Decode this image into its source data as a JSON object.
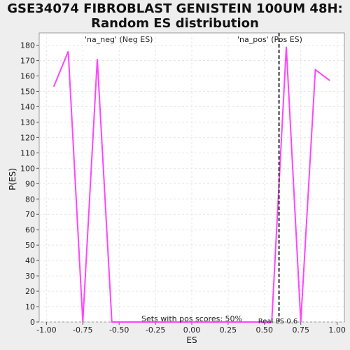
{
  "title_line1": "GSE34074 FIBROBLAST GENISTEIN 100UM 48H:",
  "title_line2": "Random ES distribution",
  "chart_data": {
    "type": "line",
    "xlabel": "ES",
    "ylabel": "P(ES)",
    "xlim": [
      -1.05,
      1.05
    ],
    "ylim": [
      0,
      188
    ],
    "x_ticks": [
      -1.0,
      -0.75,
      -0.5,
      -0.25,
      0.0,
      0.25,
      0.5,
      0.75,
      1.0
    ],
    "x_tick_labels": [
      "-1.00",
      "-0.75",
      "-0.50",
      "-0.25",
      "0.00",
      "0.25",
      "0.50",
      "0.75",
      "1.00"
    ],
    "y_ticks": [
      0,
      10,
      20,
      30,
      40,
      50,
      60,
      70,
      80,
      90,
      100,
      110,
      120,
      130,
      140,
      150,
      160,
      170,
      180
    ],
    "grid": true,
    "series": [
      {
        "color": "#ff44ff",
        "x": [
          -0.95,
          -0.85,
          -0.75,
          -0.65,
          -0.55,
          -0.45,
          -0.35,
          -0.25,
          -0.15,
          -0.05,
          0.05,
          0.15,
          0.25,
          0.35,
          0.45,
          0.55,
          0.65,
          0.75,
          0.85,
          0.95
        ],
        "y": [
          153,
          176,
          0,
          171,
          0,
          0,
          0,
          0,
          0,
          0,
          0,
          0,
          0,
          0,
          0,
          0,
          179,
          0,
          164,
          157
        ]
      }
    ],
    "real_es": {
      "x": 0.6,
      "label": "Real ES 0.6",
      "color": "#333333"
    },
    "annotations": {
      "neg_label": "'na_neg' (Neg ES)",
      "neg_color": "#4444cc",
      "pos_label": "'na_pos' (Pos ES)",
      "pos_color": "#dd4444",
      "pos_scores": "Sets with pos scores: 50%"
    }
  }
}
